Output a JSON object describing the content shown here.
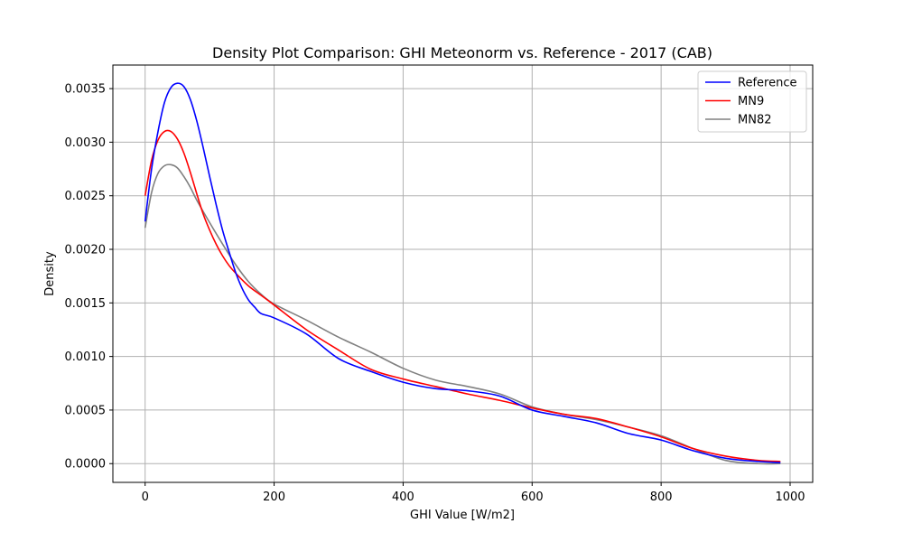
{
  "chart_data": {
    "type": "line",
    "title": "Density Plot Comparison: GHI Meteonorm vs. Reference - 2017 (CAB)",
    "xlabel": "GHI Value [W/m2]",
    "ylabel": "Density",
    "xlim": [
      -50,
      1035
    ],
    "ylim": [
      -0.000175,
      0.00372
    ],
    "xticks": [
      0,
      200,
      400,
      600,
      800,
      1000
    ],
    "xtick_labels": [
      "0",
      "200",
      "400",
      "600",
      "800",
      "1000"
    ],
    "yticks": [
      0.0,
      0.0005,
      0.001,
      0.0015,
      0.002,
      0.0025,
      0.003,
      0.0035
    ],
    "ytick_labels": [
      "0.0000",
      "0.0005",
      "0.0010",
      "0.0015",
      "0.0020",
      "0.0025",
      "0.0030",
      "0.0035"
    ],
    "grid": true,
    "legend": "top-right",
    "series": [
      {
        "name": "Reference",
        "color": "#0000ff",
        "x": [
          0,
          10,
          20,
          30,
          40,
          50,
          60,
          70,
          80,
          90,
          100,
          110,
          120,
          130,
          140,
          150,
          160,
          170,
          180,
          200,
          250,
          300,
          350,
          400,
          450,
          500,
          550,
          600,
          650,
          700,
          750,
          800,
          850,
          900,
          950,
          985
        ],
        "y": [
          0.00226,
          0.00275,
          0.0031,
          0.00337,
          0.00351,
          0.00355,
          0.00352,
          0.0034,
          0.0032,
          0.00295,
          0.00268,
          0.00242,
          0.00218,
          0.00198,
          0.00179,
          0.00164,
          0.00153,
          0.00146,
          0.0014,
          0.00136,
          0.00121,
          0.00098,
          0.00086,
          0.00076,
          0.0007,
          0.00068,
          0.00063,
          0.0005,
          0.00044,
          0.00038,
          0.00028,
          0.00022,
          0.00012,
          5e-05,
          2e-05,
          1e-05
        ]
      },
      {
        "name": "MN9",
        "color": "#ff0000",
        "x": [
          0,
          10,
          20,
          30,
          40,
          50,
          60,
          70,
          80,
          90,
          100,
          110,
          120,
          130,
          140,
          160,
          180,
          200,
          250,
          300,
          350,
          400,
          450,
          500,
          550,
          600,
          650,
          700,
          750,
          800,
          850,
          900,
          950,
          985
        ],
        "y": [
          0.0025,
          0.00283,
          0.00302,
          0.0031,
          0.0031,
          0.00303,
          0.0029,
          0.00272,
          0.00252,
          0.00233,
          0.00218,
          0.00205,
          0.00194,
          0.00185,
          0.00178,
          0.00166,
          0.00157,
          0.00148,
          0.00125,
          0.00106,
          0.00088,
          0.00079,
          0.00072,
          0.00065,
          0.00059,
          0.00052,
          0.00046,
          0.00042,
          0.00034,
          0.00025,
          0.00014,
          7e-05,
          3e-05,
          2e-05
        ]
      },
      {
        "name": "MN82",
        "color": "#808080",
        "x": [
          0,
          10,
          20,
          30,
          40,
          50,
          60,
          70,
          80,
          100,
          120,
          140,
          160,
          180,
          200,
          250,
          300,
          350,
          400,
          450,
          500,
          550,
          600,
          650,
          700,
          750,
          800,
          850,
          900,
          950,
          985
        ],
        "y": [
          0.0022,
          0.00253,
          0.00271,
          0.00278,
          0.00279,
          0.00276,
          0.00268,
          0.00258,
          0.00246,
          0.00225,
          0.00205,
          0.00186,
          0.0017,
          0.00158,
          0.00149,
          0.00134,
          0.00118,
          0.00104,
          0.00089,
          0.00078,
          0.00072,
          0.00065,
          0.00053,
          0.00046,
          0.00041,
          0.00034,
          0.00026,
          0.00014,
          3e-05,
          0.0,
          0.0
        ]
      }
    ]
  }
}
